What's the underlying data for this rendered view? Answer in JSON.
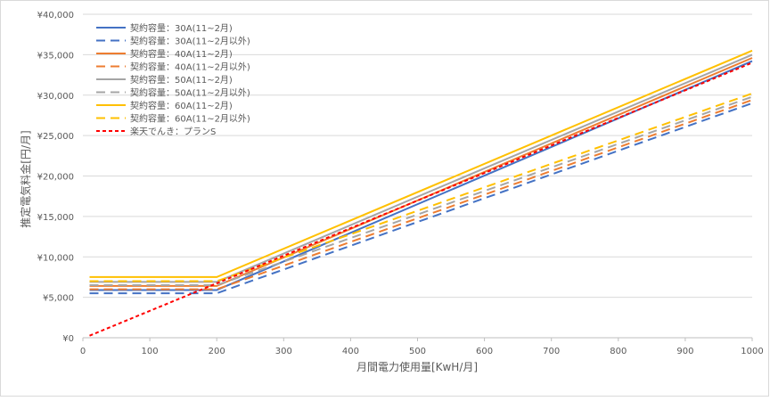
{
  "chart_data": {
    "type": "line",
    "title": "",
    "xlabel": "月間電力使用量[KwH/月]",
    "ylabel": "推定電気料金[円/月]",
    "xlim": [
      0,
      1000
    ],
    "ylim": [
      0,
      40000
    ],
    "xticks": [
      0,
      100,
      200,
      300,
      400,
      500,
      600,
      700,
      800,
      900,
      1000
    ],
    "yticks": [
      0,
      5000,
      10000,
      15000,
      20000,
      25000,
      30000,
      35000,
      40000
    ],
    "ytick_labels": [
      "¥0",
      "¥5,000",
      "¥10,000",
      "¥15,000",
      "¥20,000",
      "¥25,000",
      "¥30,000",
      "¥35,000",
      "¥40,000"
    ],
    "grid": "horizontal",
    "legend_position": "top-left",
    "series": [
      {
        "name": "契約容量：30A(11~2月)",
        "color": "#4472c4",
        "dash": "solid",
        "points": [
          [
            10,
            5900
          ],
          [
            200,
            5900
          ],
          [
            1000,
            34200
          ]
        ]
      },
      {
        "name": "契約容量：30A(11~2月以外)",
        "color": "#4472c4",
        "dash": "dashed",
        "points": [
          [
            10,
            5500
          ],
          [
            200,
            5500
          ],
          [
            1000,
            29000
          ]
        ]
      },
      {
        "name": "契約容量：40A(11~2月)",
        "color": "#ed7d31",
        "dash": "solid",
        "points": [
          [
            10,
            6400
          ],
          [
            200,
            6400
          ],
          [
            1000,
            34600
          ]
        ]
      },
      {
        "name": "契約容量：40A(11~2月以外)",
        "color": "#ed7d31",
        "dash": "dashed",
        "points": [
          [
            10,
            6000
          ],
          [
            200,
            6000
          ],
          [
            1000,
            29400
          ]
        ]
      },
      {
        "name": "契約容量：50A(11~2月)",
        "color": "#a5a5a5",
        "dash": "solid",
        "points": [
          [
            10,
            6900
          ],
          [
            200,
            6900
          ],
          [
            1000,
            35000
          ]
        ]
      },
      {
        "name": "契約容量：50A(11~2月以外)",
        "color": "#a5a5a5",
        "dash": "dashed",
        "points": [
          [
            10,
            6500
          ],
          [
            200,
            6500
          ],
          [
            1000,
            29800
          ]
        ]
      },
      {
        "name": "契約容量：60A(11~2月)",
        "color": "#ffc000",
        "dash": "solid",
        "points": [
          [
            10,
            7500
          ],
          [
            200,
            7500
          ],
          [
            1000,
            35500
          ]
        ]
      },
      {
        "name": "契約容量：60A(11~2月以外)",
        "color": "#ffc000",
        "dash": "dashed",
        "points": [
          [
            10,
            7000
          ],
          [
            200,
            7000
          ],
          [
            1000,
            30200
          ]
        ]
      },
      {
        "name": "楽天でんき：プランS",
        "color": "#ff0000",
        "dash": "dotted",
        "points": [
          [
            10,
            250
          ],
          [
            1000,
            34000
          ]
        ]
      }
    ]
  }
}
